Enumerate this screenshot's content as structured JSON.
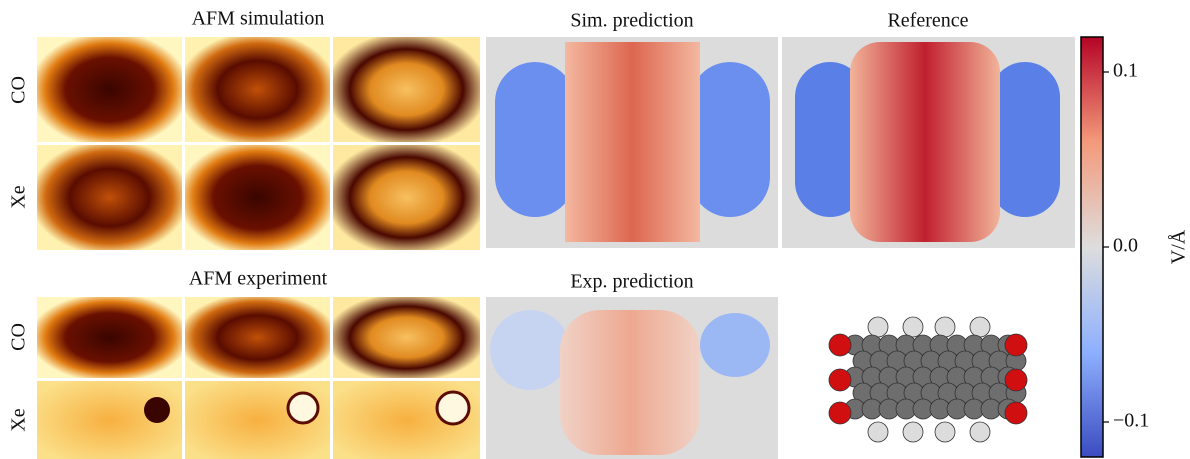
{
  "panels": {
    "afm_simulation": {
      "title": "AFM simulation",
      "rows": [
        "CO",
        "Xe"
      ]
    },
    "sim_prediction": {
      "title": "Sim. prediction"
    },
    "reference": {
      "title": "Reference"
    },
    "afm_experiment": {
      "title": "AFM experiment",
      "rows": [
        "CO",
        "Xe"
      ]
    },
    "exp_prediction": {
      "title": "Exp. prediction"
    }
  },
  "colorbar": {
    "label": "V/Å",
    "lim": [
      -0.12,
      0.12
    ],
    "ticks": [
      0.1,
      {
        "value": 0,
        "label": "0.0"
      },
      {
        "value": -0.1,
        "label": "−0.1"
      }
    ],
    "colors": [
      "#3b4cc0",
      "#8db0fe",
      "#dddddd",
      "#f49a7b",
      "#b40426"
    ]
  }
}
